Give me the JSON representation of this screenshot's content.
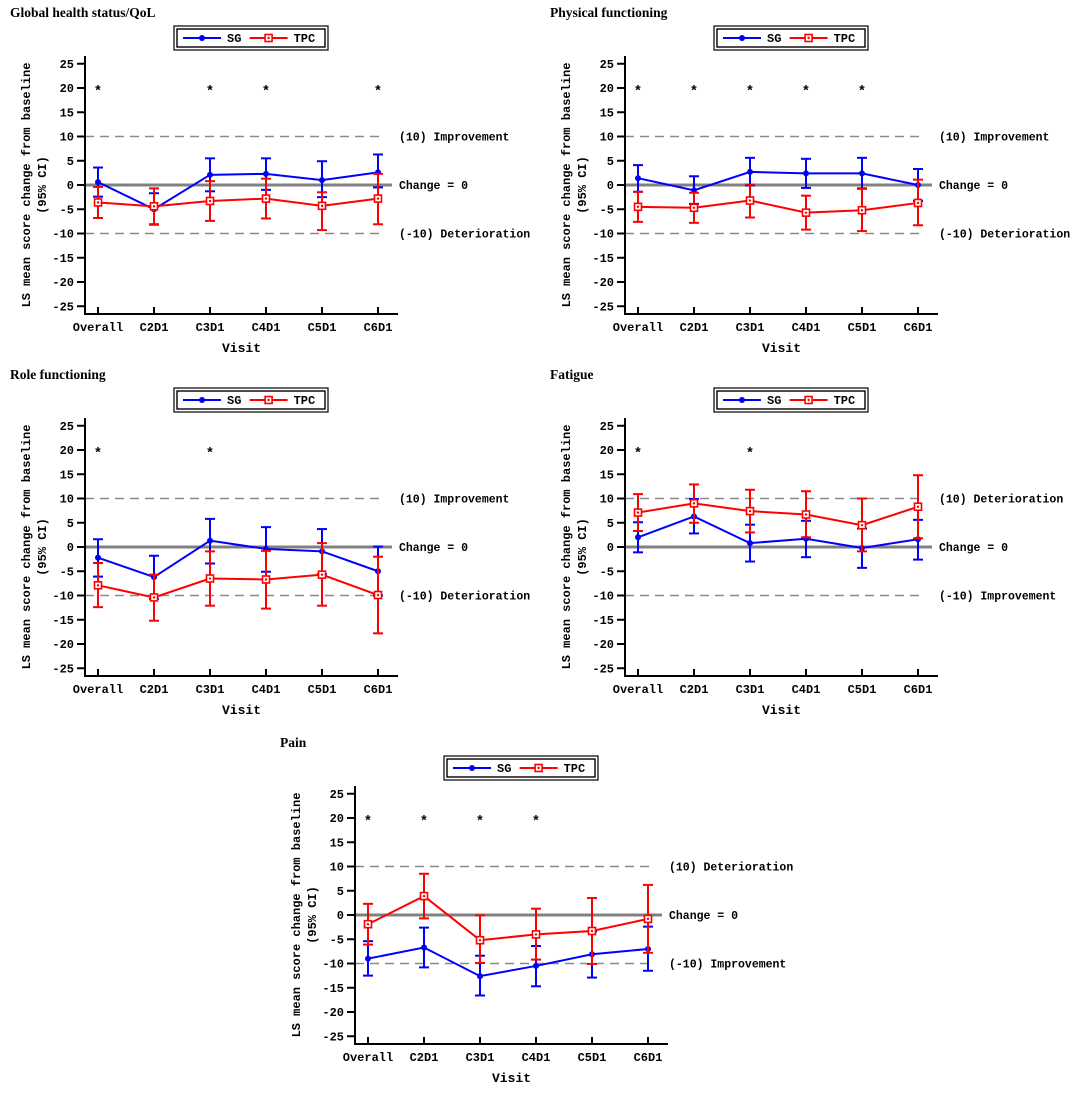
{
  "figure": {
    "background_color": "#ffffff",
    "text_color": "#000000",
    "axis_color": "#000000",
    "zero_line_color": "#808080",
    "dashed_line_color": "#8a8a8a",
    "significance_marker": "*",
    "legend_entries": [
      {
        "label": "SG",
        "color": "#0000ff",
        "marker": "filled-circle"
      },
      {
        "label": "TPC",
        "color": "#ff0000",
        "marker": "open-square"
      }
    ]
  },
  "chart_data": [
    {
      "type": "line",
      "title": "Global health status/QoL",
      "xlabel": "Visit",
      "ylabel": "LS mean score change from baseline",
      "ylabel2": "(95% CI)",
      "ylim": [
        -25,
        25
      ],
      "yticks": [
        -25,
        -20,
        -15,
        -10,
        -5,
        0,
        5,
        10,
        15,
        20,
        25
      ],
      "grid": false,
      "legend_position": "top-center",
      "categories": [
        "Overall",
        "C2D1",
        "C3D1",
        "C4D1",
        "C5D1",
        "C6D1"
      ],
      "reference_lines": [
        {
          "value": 10,
          "style": "dashed",
          "label": "(10) Improvement"
        },
        {
          "value": 0,
          "style": "solid",
          "label": "Change = 0"
        },
        {
          "value": -10,
          "style": "dashed",
          "label": "(-10) Deterioration"
        }
      ],
      "significance_y": 20,
      "significant_visits": [
        "Overall",
        "C3D1",
        "C4D1",
        "C6D1"
      ],
      "series": [
        {
          "name": "SG",
          "color": "#0000ff",
          "marker": "filled-circle",
          "means": [
            0.6,
            -5.0,
            2.1,
            2.3,
            1.0,
            2.6
          ],
          "ci_low": [
            -2.4,
            -8.1,
            -1.3,
            -1.0,
            -2.5,
            -0.5
          ],
          "ci_high": [
            3.6,
            -1.7,
            5.5,
            5.5,
            4.9,
            6.3
          ]
        },
        {
          "name": "TPC",
          "color": "#ff0000",
          "marker": "open-square",
          "means": [
            -3.6,
            -4.4,
            -3.3,
            -2.8,
            -4.3,
            -2.8
          ],
          "ci_low": [
            -6.8,
            -8.2,
            -7.4,
            -6.9,
            -9.3,
            -8.1
          ],
          "ci_high": [
            -0.4,
            -0.7,
            0.8,
            1.3,
            -1.5,
            2.3
          ]
        }
      ]
    },
    {
      "type": "line",
      "title": "Physical functioning",
      "xlabel": "Visit",
      "ylabel": "LS mean score change from baseline",
      "ylabel2": "(95% CI)",
      "ylim": [
        -25,
        25
      ],
      "yticks": [
        -25,
        -20,
        -15,
        -10,
        -5,
        0,
        5,
        10,
        15,
        20,
        25
      ],
      "grid": false,
      "legend_position": "top-center",
      "categories": [
        "Overall",
        "C2D1",
        "C3D1",
        "C4D1",
        "C5D1",
        "C6D1"
      ],
      "reference_lines": [
        {
          "value": 10,
          "style": "dashed",
          "label": "(10) Improvement"
        },
        {
          "value": 0,
          "style": "solid",
          "label": "Change = 0"
        },
        {
          "value": -10,
          "style": "dashed",
          "label": "(-10) Deterioration"
        }
      ],
      "significance_y": 20,
      "significant_visits": [
        "Overall",
        "C2D1",
        "C3D1",
        "C4D1",
        "C5D1"
      ],
      "series": [
        {
          "name": "SG",
          "color": "#0000ff",
          "marker": "filled-circle",
          "means": [
            1.4,
            -1.1,
            2.7,
            2.4,
            2.4,
            0.0
          ],
          "ci_low": [
            -1.4,
            -3.9,
            -0.1,
            -0.6,
            -0.7,
            -3.3
          ],
          "ci_high": [
            4.1,
            1.8,
            5.6,
            5.4,
            5.6,
            3.3
          ]
        },
        {
          "name": "TPC",
          "color": "#ff0000",
          "marker": "open-square",
          "means": [
            -4.5,
            -4.7,
            -3.2,
            -5.7,
            -5.2,
            -3.7
          ],
          "ci_low": [
            -7.6,
            -7.8,
            -6.7,
            -9.2,
            -9.5,
            -8.3
          ],
          "ci_high": [
            -1.4,
            -1.6,
            0.1,
            -2.2,
            -0.8,
            1.1
          ]
        }
      ]
    },
    {
      "type": "line",
      "title": "Role functioning",
      "xlabel": "Visit",
      "ylabel": "LS mean score change from baseline",
      "ylabel2": "(95% CI)",
      "ylim": [
        -25,
        25
      ],
      "yticks": [
        -25,
        -20,
        -15,
        -10,
        -5,
        0,
        5,
        10,
        15,
        20,
        25
      ],
      "grid": false,
      "legend_position": "top-center",
      "categories": [
        "Overall",
        "C2D1",
        "C3D1",
        "C4D1",
        "C5D1",
        "C6D1"
      ],
      "reference_lines": [
        {
          "value": 10,
          "style": "dashed",
          "label": "(10) Improvement"
        },
        {
          "value": 0,
          "style": "solid",
          "label": "Change = 0"
        },
        {
          "value": -10,
          "style": "dashed",
          "label": "(-10) Deterioration"
        }
      ],
      "significance_y": 20,
      "significant_visits": [
        "Overall",
        "C3D1"
      ],
      "series": [
        {
          "name": "SG",
          "color": "#0000ff",
          "marker": "filled-circle",
          "means": [
            -2.2,
            -6.2,
            1.3,
            -0.4,
            -0.9,
            -5.0
          ],
          "ci_low": [
            -6.1,
            -10.7,
            -3.4,
            -5.1,
            -5.6,
            -10.0
          ],
          "ci_high": [
            1.6,
            -1.8,
            5.8,
            4.1,
            3.7,
            0.1
          ]
        },
        {
          "name": "TPC",
          "color": "#ff0000",
          "marker": "open-square",
          "means": [
            -7.9,
            -10.4,
            -6.5,
            -6.7,
            -5.7,
            -9.9
          ],
          "ci_low": [
            -12.4,
            -15.2,
            -12.1,
            -12.7,
            -12.1,
            -17.8
          ],
          "ci_high": [
            -3.3,
            -5.7,
            -0.9,
            -0.8,
            0.8,
            -2.0
          ]
        }
      ]
    },
    {
      "type": "line",
      "title": "Fatigue",
      "xlabel": "Visit",
      "ylabel": "LS mean score change from baseline",
      "ylabel2": "(95% CI)",
      "ylim": [
        -25,
        25
      ],
      "yticks": [
        -25,
        -20,
        -15,
        -10,
        -5,
        0,
        5,
        10,
        15,
        20,
        25
      ],
      "grid": false,
      "legend_position": "top-center",
      "categories": [
        "Overall",
        "C2D1",
        "C3D1",
        "C4D1",
        "C5D1",
        "C6D1"
      ],
      "reference_lines": [
        {
          "value": 10,
          "style": "dashed",
          "label": "(10) Deterioration"
        },
        {
          "value": 0,
          "style": "solid",
          "label": "Change = 0"
        },
        {
          "value": -10,
          "style": "dashed",
          "label": "(-10) Improvement"
        }
      ],
      "significance_y": 20,
      "significant_visits": [
        "Overall",
        "C3D1"
      ],
      "series": [
        {
          "name": "SG",
          "color": "#0000ff",
          "marker": "filled-circle",
          "means": [
            2.0,
            6.3,
            0.8,
            1.7,
            -0.2,
            1.6
          ],
          "ci_low": [
            -1.1,
            2.8,
            -3.0,
            -2.1,
            -4.3,
            -2.6
          ],
          "ci_high": [
            5.1,
            9.9,
            4.6,
            5.4,
            3.8,
            5.6
          ]
        },
        {
          "name": "TPC",
          "color": "#ff0000",
          "marker": "open-square",
          "means": [
            7.1,
            9.0,
            7.4,
            6.7,
            4.5,
            8.3
          ],
          "ci_low": [
            3.3,
            5.0,
            3.0,
            2.0,
            -0.9,
            1.8
          ],
          "ci_high": [
            10.9,
            12.9,
            11.8,
            11.5,
            10.0,
            14.8
          ]
        }
      ]
    },
    {
      "type": "line",
      "title": "Pain",
      "xlabel": "Visit",
      "ylabel": "LS mean score change from baseline",
      "ylabel2": "(95% CI)",
      "ylim": [
        -25,
        25
      ],
      "yticks": [
        -25,
        -20,
        -15,
        -10,
        -5,
        0,
        5,
        10,
        15,
        20,
        25
      ],
      "grid": false,
      "legend_position": "top-center",
      "categories": [
        "Overall",
        "C2D1",
        "C3D1",
        "C4D1",
        "C5D1",
        "C6D1"
      ],
      "reference_lines": [
        {
          "value": 10,
          "style": "dashed",
          "label": "(10) Deterioration"
        },
        {
          "value": 0,
          "style": "solid",
          "label": "Change = 0"
        },
        {
          "value": -10,
          "style": "dashed",
          "label": "(-10) Improvement"
        }
      ],
      "significance_y": 20,
      "significant_visits": [
        "Overall",
        "C2D1",
        "C3D1",
        "C4D1"
      ],
      "series": [
        {
          "name": "SG",
          "color": "#0000ff",
          "marker": "filled-circle",
          "means": [
            -9.0,
            -6.7,
            -12.6,
            -10.5,
            -8.1,
            -7.0
          ],
          "ci_low": [
            -12.5,
            -10.8,
            -16.6,
            -14.7,
            -12.9,
            -11.5
          ],
          "ci_high": [
            -5.4,
            -2.6,
            -8.4,
            -6.4,
            -3.4,
            -2.4
          ]
        },
        {
          "name": "TPC",
          "color": "#ff0000",
          "marker": "open-square",
          "means": [
            -1.9,
            3.9,
            -5.2,
            -4.0,
            -3.3,
            -0.8
          ],
          "ci_low": [
            -6.1,
            -0.7,
            -9.9,
            -9.2,
            -10.1,
            -7.8
          ],
          "ci_high": [
            2.3,
            8.5,
            -0.1,
            1.3,
            3.5,
            6.2
          ]
        }
      ]
    }
  ]
}
